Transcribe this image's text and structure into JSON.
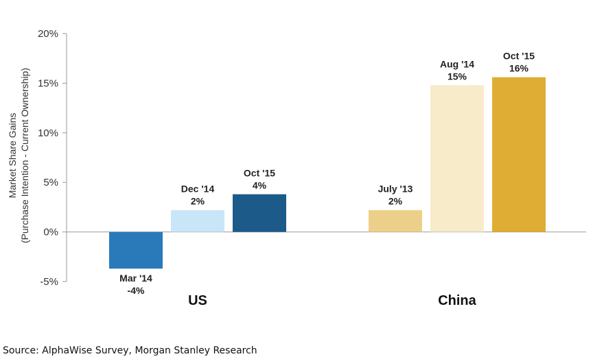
{
  "chart_data": {
    "type": "bar",
    "ylabel_line1": "Market Share Gains",
    "ylabel_line2": "(Purchase Intention - Current Ownership)",
    "ylim": [
      -5,
      20
    ],
    "yticks": [
      {
        "value": -5,
        "label": "-5%"
      },
      {
        "value": 0,
        "label": "0%"
      },
      {
        "value": 5,
        "label": "5%"
      },
      {
        "value": 10,
        "label": "10%"
      },
      {
        "value": 15,
        "label": "15%"
      },
      {
        "value": 20,
        "label": "20%"
      }
    ],
    "grid": false,
    "groups": [
      {
        "name": "US",
        "bars": [
          {
            "category": "Mar '14",
            "value": -3.7,
            "label": "-4%",
            "color": "#2a7ab9"
          },
          {
            "category": "Dec '14",
            "value": 2.2,
            "label": "2%",
            "color": "#c9e6f8"
          },
          {
            "category": "Oct '15",
            "value": 3.8,
            "label": "4%",
            "color": "#1c5a8a"
          }
        ]
      },
      {
        "name": "China",
        "bars": [
          {
            "category": "July '13",
            "value": 2.2,
            "label": "2%",
            "color": "#ecd08a"
          },
          {
            "category": "Aug '14",
            "value": 14.8,
            "label": "15%",
            "color": "#f7ebca"
          },
          {
            "category": "Oct '15",
            "value": 15.6,
            "label": "16%",
            "color": "#dfad33"
          }
        ]
      }
    ]
  },
  "footer": {
    "source": "Source: AlphaWise Survey, Morgan Stanley Research"
  }
}
